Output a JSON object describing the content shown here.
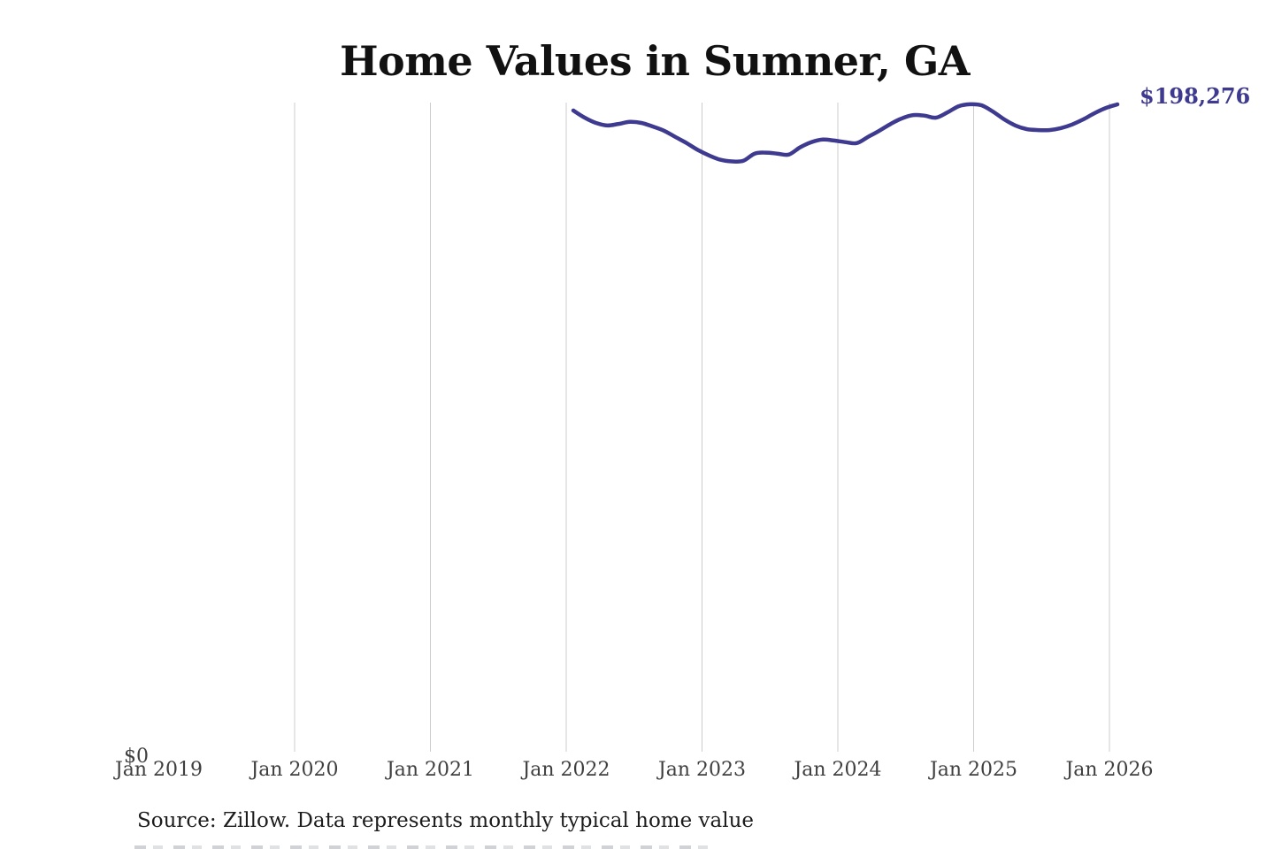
{
  "title": "Home Values in Sumner, GA",
  "latest_value_label": "$198,276",
  "source_note": "Source: Zillow. Data represents monthly typical home value",
  "y_axis": {
    "zero_label": "$0"
  },
  "x_axis": {
    "ticks": [
      "Jan 2019",
      "Jan 2020",
      "Jan 2021",
      "Jan 2022",
      "Jan 2023",
      "Jan 2024",
      "Jan 2025",
      "Jan 2026"
    ]
  },
  "colors": {
    "line": "#3e3a90",
    "grid": "#cccccc",
    "title": "#111111",
    "axis_text": "#3f3f3f",
    "source_text": "#1c1c1c",
    "value_label": "#3f3b94"
  },
  "chart_data": {
    "type": "line",
    "title": "Home Values in Sumner, GA",
    "xlabel": "",
    "ylabel": "",
    "ylim": [
      0,
      198276
    ],
    "grid": "vertical-only",
    "legend": "none",
    "annotation": {
      "text": "$198,276",
      "attached_to": "last-point"
    },
    "series": [
      {
        "name": "Monthly typical home value",
        "x": [
          "2022-02",
          "2022-03",
          "2022-04",
          "2022-05",
          "2022-06",
          "2022-07",
          "2022-08",
          "2022-09",
          "2022-10",
          "2022-11",
          "2022-12",
          "2023-01",
          "2023-02",
          "2023-03",
          "2023-04",
          "2023-05",
          "2023-06",
          "2023-07",
          "2023-08",
          "2023-09",
          "2023-10",
          "2023-11",
          "2023-12",
          "2024-01",
          "2024-02",
          "2024-03",
          "2024-04",
          "2024-05",
          "2024-06",
          "2024-07",
          "2024-08",
          "2024-09",
          "2024-10",
          "2024-11",
          "2024-12",
          "2025-01",
          "2025-02",
          "2025-03",
          "2025-04",
          "2025-05",
          "2025-06",
          "2025-07",
          "2025-08",
          "2025-09",
          "2025-10",
          "2025-11",
          "2025-12",
          "2026-01",
          "2026-02"
        ],
        "values": [
          196400,
          194200,
          192600,
          191800,
          192300,
          192900,
          192600,
          191500,
          190200,
          188300,
          186400,
          184300,
          182600,
          181300,
          180800,
          181000,
          183200,
          183500,
          183200,
          182900,
          185100,
          186700,
          187500,
          187200,
          186700,
          186400,
          188300,
          190200,
          192300,
          194000,
          195000,
          194800,
          194200,
          195800,
          197700,
          198300,
          198000,
          196100,
          193700,
          191800,
          190700,
          190400,
          190400,
          191000,
          192100,
          193700,
          195600,
          197200,
          198276
        ]
      }
    ]
  }
}
